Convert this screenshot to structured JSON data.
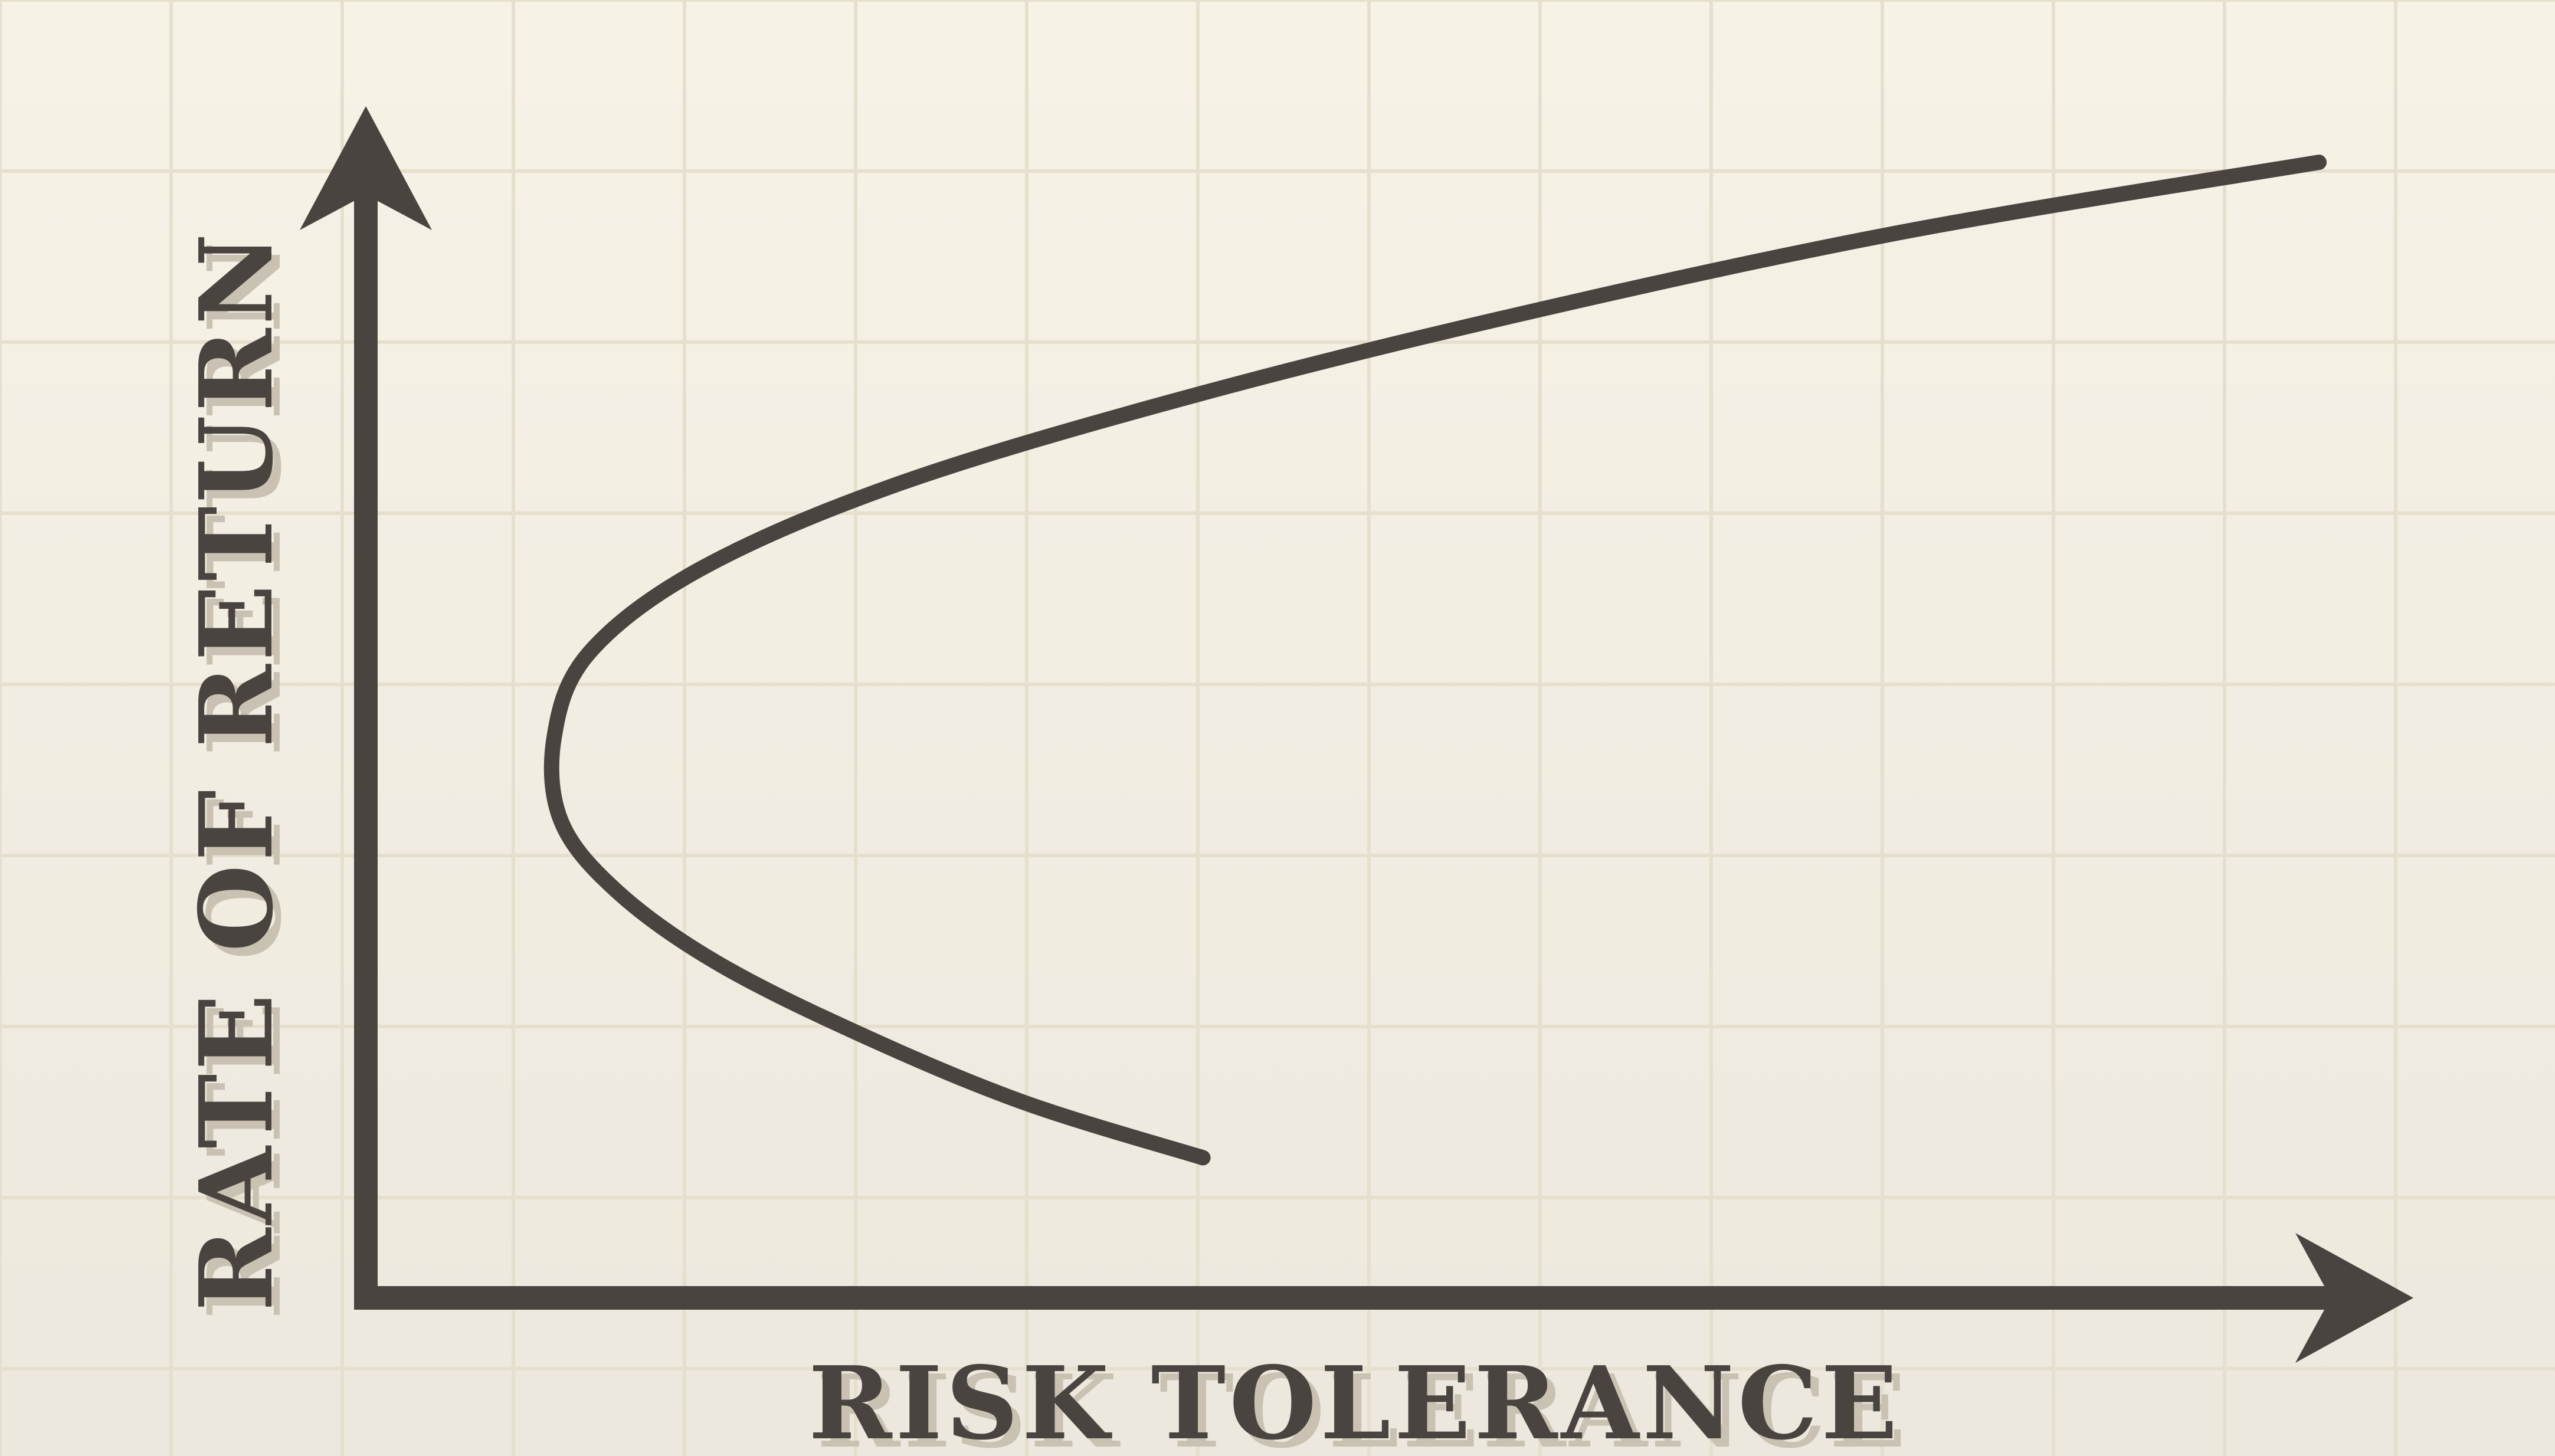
{
  "chart_data": {
    "type": "line",
    "xlabel": "RISK TOLERANCE",
    "ylabel": "RATE OF RETURN",
    "grid": true,
    "axis_arrows": true,
    "tick_labels": false,
    "series": [
      {
        "x": [
          6.0,
          4.7,
          3.5,
          2.5,
          1.8,
          1.4,
          1.35,
          1.6,
          2.4,
          3.8,
          5.8,
          8.2,
          11.0,
          14.0
        ],
        "y": [
          1.0,
          1.4,
          1.9,
          2.4,
          2.9,
          3.4,
          4.0,
          4.6,
          5.2,
          5.8,
          6.4,
          7.0,
          7.6,
          8.1
        ]
      }
    ],
    "colors": {
      "background": "#f6f2e6",
      "grid": "#e6dfcd",
      "ink": "#4a4440",
      "label_shadow": "#c9c2b3"
    }
  }
}
